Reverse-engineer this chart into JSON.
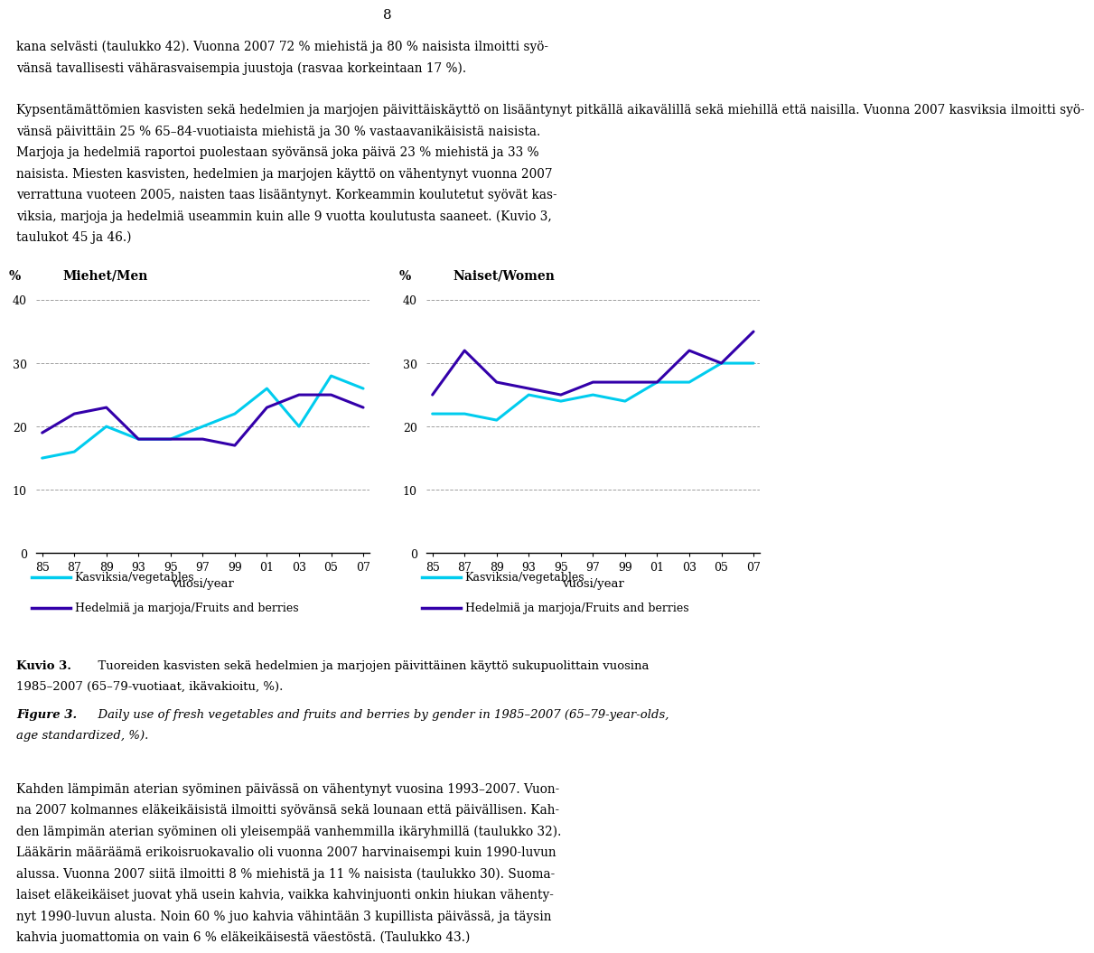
{
  "years_idx": [
    0,
    1,
    2,
    3,
    4,
    5,
    6,
    7,
    8,
    9,
    10
  ],
  "year_labels": [
    "85",
    "87",
    "89",
    "93",
    "95",
    "97",
    "99",
    "01",
    "03",
    "05",
    "07"
  ],
  "men_vegetables": [
    15,
    16,
    20,
    18,
    18,
    20,
    22,
    26,
    20,
    28,
    26
  ],
  "men_fruits": [
    19,
    22,
    23,
    18,
    18,
    18,
    17,
    23,
    25,
    25,
    23
  ],
  "women_vegetables": [
    22,
    22,
    21,
    25,
    24,
    25,
    24,
    27,
    27,
    30,
    30
  ],
  "women_fruits": [
    25,
    32,
    27,
    26,
    25,
    27,
    27,
    27,
    32,
    30,
    35
  ],
  "cyan_color": "#00CCEE",
  "purple_color": "#3300AA",
  "title_men": "Miehet/Men",
  "title_women": "Naiset/Women",
  "xlabel": "vuosi/year",
  "ylim": [
    0,
    40
  ],
  "yticks": [
    0,
    10,
    20,
    30,
    40
  ],
  "legend_veg": "Kasviksia/vegetables",
  "legend_fruit": "Hedelmiä ja marjoja/Fruits and berries",
  "page_number": "8",
  "top_line1": "kana selvästi (taulukko 42). Vuonna 2007 72 % miehistä ja 80 % naisista ilmoitti syö-",
  "top_line2": "vänsä tavallisesti vähärasvaisempia juustoja (rasvaa korkeintaan 17 %).",
  "top_para2_lines": [
    "Kypsentämättömien kasvisten sekä hedelmien ja marjojen päivittäiskäyttö on lisääntynyt pitkällä aikavälillä sekä miehillä että naisilla. Vuonna 2007 kasviksia ilmoitti syö-",
    "vänsä päivittäin 25 % 65–84-vuotiaista miehistä ja 30 % vastaavanikäisistä naisista.",
    "Marjoja ja hedelmiä raportoi puolestaan syövänsä joka päivä 23 % miehistä ja 33 %",
    "naisista. Miesten kasvisten, hedelmien ja marjojen käyttö on vähentynyt vuonna 2007",
    "verrattuna vuoteen 2005, naisten taas lisääntynyt. Korkeammin koulutetut syövät kas-",
    "viksia, marjoja ja hedelmiä useammin kuin alle 9 vuotta koulutusta saaneet. (Kuvio 3,",
    "taulukot 45 ja 46.)"
  ],
  "caption_kuvio_bold": "Kuvio 3.",
  "caption_kuvio_text": "  Tuoreiden kasvisten sekä hedelmien ja marjojen päivittäinen käyttö sukupuolittain vuosina",
  "caption_kuvio_text2": "1985–2007 (65–79-vuotiaat, ikävakioitu, %).",
  "caption_fig_bold": "Figure 3.",
  "caption_fig_text": "  Daily use of fresh vegetables and fruits and berries by gender in 1985–2007 (65–79-year-olds,",
  "caption_fig_text2": "age standardized, %).",
  "bottom_lines": [
    "Kahden lämpimän aterian syöminen päivässä on vähentynyt vuosina 1993–2007. Vuon-",
    "na 2007 kolmannes eläkeikäisistä ilmoitti syövänsä sekä lounaan että päivällisen. Kah-",
    "den lämpimän aterian syöminen oli yleisempää vanhemmilla ikäryhmillä (taulukko 32).",
    "Lääkärin määräämä erikoisruokavalio oli vuonna 2007 harvinaisempi kuin 1990-luvun",
    "alussa. Vuonna 2007 siitä ilmoitti 8 % miehistä ja 11 % naisista (taulukko 30). Suoma-",
    "laiset eläkeikäiset juovat yhä usein kahvia, vaikka kahvinjuonti onkin hiukan vähenty-",
    "nyt 1990-luvun alusta. Noin 60 % juo kahvia vähintään 3 kupillista päivässä, ja täysin",
    "kahvia juomattomia on vain 6 % eläkeikäisestä väestöstä. (Taulukko 43.)"
  ]
}
